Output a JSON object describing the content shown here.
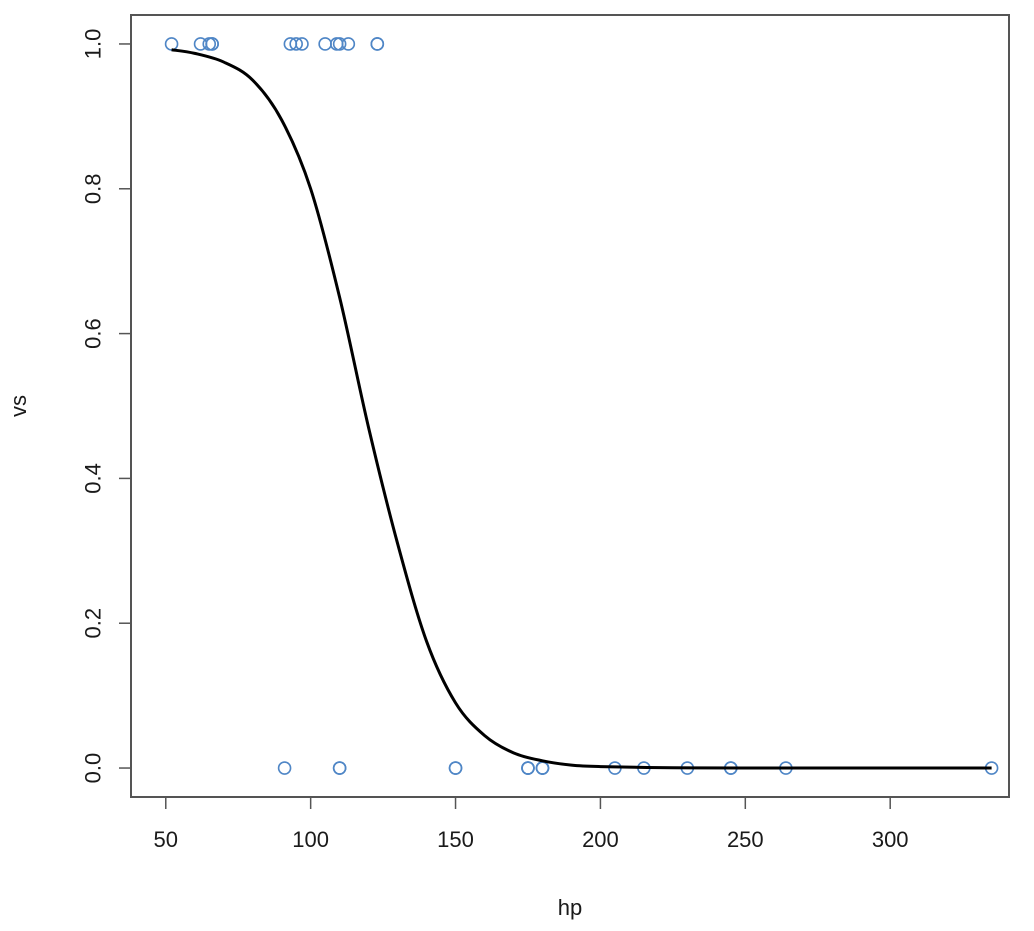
{
  "chart_data": {
    "type": "scatter",
    "xlabel": "hp",
    "ylabel": "vs",
    "xlim": [
      38,
      341
    ],
    "ylim": [
      -0.04,
      1.04
    ],
    "x_ticks": [
      50,
      100,
      150,
      200,
      250,
      300
    ],
    "y_ticks": [
      0.0,
      0.2,
      0.4,
      0.6,
      0.8,
      1.0
    ],
    "x_tick_labels": [
      "50",
      "100",
      "150",
      "200",
      "250",
      "300"
    ],
    "y_tick_labels": [
      "0.0",
      "0.2",
      "0.4",
      "0.6",
      "0.8",
      "1.0"
    ],
    "grid": false,
    "series": [
      {
        "kind": "points",
        "marker": "open-circle",
        "color": "#4f86c6",
        "points": [
          {
            "x": 52,
            "y": 1
          },
          {
            "x": 62,
            "y": 1
          },
          {
            "x": 65,
            "y": 1
          },
          {
            "x": 66,
            "y": 1
          },
          {
            "x": 66,
            "y": 1
          },
          {
            "x": 93,
            "y": 1
          },
          {
            "x": 95,
            "y": 1
          },
          {
            "x": 97,
            "y": 1
          },
          {
            "x": 105,
            "y": 1
          },
          {
            "x": 109,
            "y": 1
          },
          {
            "x": 110,
            "y": 1
          },
          {
            "x": 113,
            "y": 1
          },
          {
            "x": 123,
            "y": 1
          },
          {
            "x": 123,
            "y": 1
          },
          {
            "x": 91,
            "y": 0
          },
          {
            "x": 110,
            "y": 0
          },
          {
            "x": 110,
            "y": 0
          },
          {
            "x": 150,
            "y": 0
          },
          {
            "x": 150,
            "y": 0
          },
          {
            "x": 175,
            "y": 0
          },
          {
            "x": 175,
            "y": 0
          },
          {
            "x": 175,
            "y": 0
          },
          {
            "x": 180,
            "y": 0
          },
          {
            "x": 180,
            "y": 0
          },
          {
            "x": 180,
            "y": 0
          },
          {
            "x": 205,
            "y": 0
          },
          {
            "x": 215,
            "y": 0
          },
          {
            "x": 230,
            "y": 0
          },
          {
            "x": 245,
            "y": 0
          },
          {
            "x": 245,
            "y": 0
          },
          {
            "x": 264,
            "y": 0
          },
          {
            "x": 335,
            "y": 0
          }
        ]
      },
      {
        "kind": "curve",
        "color": "#000000",
        "x_range": [
          52,
          335
        ],
        "curve_points": [
          {
            "x": 52,
            "y": 0.992
          },
          {
            "x": 60,
            "y": 0.987
          },
          {
            "x": 70,
            "y": 0.975
          },
          {
            "x": 80,
            "y": 0.95
          },
          {
            "x": 90,
            "y": 0.895
          },
          {
            "x": 100,
            "y": 0.8
          },
          {
            "x": 110,
            "y": 0.65
          },
          {
            "x": 120,
            "y": 0.47
          },
          {
            "x": 130,
            "y": 0.31
          },
          {
            "x": 140,
            "y": 0.175
          },
          {
            "x": 150,
            "y": 0.09
          },
          {
            "x": 160,
            "y": 0.045
          },
          {
            "x": 170,
            "y": 0.021
          },
          {
            "x": 180,
            "y": 0.01
          },
          {
            "x": 190,
            "y": 0.004
          },
          {
            "x": 200,
            "y": 0.002
          },
          {
            "x": 225,
            "y": 0.0004
          },
          {
            "x": 250,
            "y": 0.0001
          },
          {
            "x": 300,
            "y": 0.0
          },
          {
            "x": 335,
            "y": 0.0
          }
        ]
      }
    ]
  }
}
